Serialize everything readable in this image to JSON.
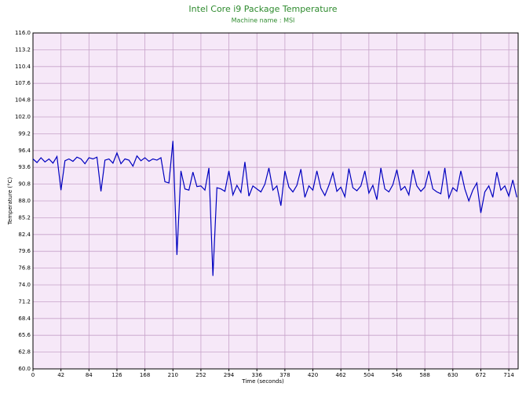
{
  "chart_data": {
    "type": "line",
    "title": "Intel Core i9 Package Temperature",
    "subtitle": "Machine name : MSI",
    "x_label": "Time (seconds)",
    "y_label": "Temperature (°C)",
    "color": "#0000c0",
    "background": "#f6e8f8",
    "grid": true,
    "xlim": [
      0,
      728
    ],
    "ylim": [
      60,
      116
    ],
    "xticks": [
      0,
      42,
      84,
      126,
      168,
      210,
      252,
      294,
      336,
      378,
      420,
      462,
      504,
      546,
      588,
      630,
      672,
      714
    ],
    "yticks": [
      {
        "value": 60,
        "label": "60.0"
      },
      {
        "value": 62.8,
        "label": "62.8"
      },
      {
        "value": 65.6,
        "label": "65.6"
      },
      {
        "value": 68.4,
        "label": "68.4"
      },
      {
        "value": 71.2,
        "label": "71.2"
      },
      {
        "value": 74,
        "label": "74.0"
      },
      {
        "value": 76.8,
        "label": "76.8"
      },
      {
        "value": 79.6,
        "label": "79.6"
      },
      {
        "value": 82.4,
        "label": "82.4"
      },
      {
        "value": 85.2,
        "label": "85.2"
      },
      {
        "value": 88,
        "label": "88.0"
      },
      {
        "value": 90.8,
        "label": "90.8"
      },
      {
        "value": 93.6,
        "label": "93.6"
      },
      {
        "value": 96.4,
        "label": "96.4"
      },
      {
        "value": 99.2,
        "label": "99.2"
      },
      {
        "value": 102,
        "label": "102.0"
      },
      {
        "value": 104.8,
        "label": "104.8"
      },
      {
        "value": 107.6,
        "label": "107.6"
      },
      {
        "value": 110.4,
        "label": "110.4"
      },
      {
        "value": 113.2,
        "label": "113.2"
      },
      {
        "value": 116,
        "label": "116.0"
      }
    ],
    "x": [
      0,
      6,
      12,
      18,
      24,
      30,
      36,
      42,
      48,
      54,
      60,
      66,
      72,
      78,
      84,
      90,
      96,
      102,
      108,
      114,
      120,
      126,
      132,
      138,
      144,
      150,
      156,
      162,
      168,
      174,
      180,
      186,
      192,
      198,
      204,
      210,
      216,
      222,
      228,
      234,
      240,
      246,
      252,
      258,
      264,
      270,
      276,
      282,
      288,
      294,
      300,
      306,
      312,
      318,
      324,
      330,
      336,
      342,
      348,
      354,
      360,
      366,
      372,
      378,
      384,
      390,
      396,
      402,
      408,
      414,
      420,
      426,
      432,
      438,
      444,
      450,
      456,
      462,
      468,
      474,
      480,
      486,
      492,
      498,
      504,
      510,
      516,
      522,
      528,
      534,
      540,
      546,
      552,
      558,
      564,
      570,
      576,
      582,
      588,
      594,
      600,
      606,
      612,
      618,
      624,
      630,
      636,
      642,
      648,
      654,
      660,
      666,
      672,
      678,
      684,
      690,
      696,
      702,
      708,
      714,
      720,
      726
    ],
    "values": [
      95.0,
      94.4,
      95.2,
      94.5,
      95.0,
      94.3,
      95.4,
      89.8,
      94.7,
      95.0,
      94.6,
      95.3,
      95.0,
      94.2,
      95.2,
      95.0,
      95.3,
      89.6,
      94.8,
      95.0,
      94.3,
      96.0,
      94.2,
      95.0,
      94.8,
      93.8,
      95.5,
      94.7,
      95.2,
      94.6,
      95.0,
      94.8,
      95.2,
      91.2,
      91.0,
      98.0,
      79.0,
      93.0,
      90.0,
      89.8,
      92.8,
      90.4,
      90.5,
      89.8,
      93.5,
      75.5,
      90.2,
      90.0,
      89.6,
      93.0,
      89.0,
      90.6,
      89.4,
      94.5,
      88.8,
      90.5,
      90.0,
      89.5,
      90.8,
      93.5,
      89.8,
      90.5,
      87.2,
      93.0,
      90.3,
      89.5,
      90.6,
      93.3,
      88.6,
      90.5,
      89.8,
      93.0,
      90.1,
      88.9,
      90.6,
      92.7,
      89.6,
      90.3,
      88.7,
      93.4,
      90.2,
      89.7,
      90.5,
      93.0,
      89.3,
      90.6,
      88.2,
      93.5,
      90.0,
      89.5,
      90.7,
      93.2,
      89.8,
      90.4,
      89.0,
      93.2,
      90.5,
      89.6,
      90.3,
      93.0,
      90.0,
      89.5,
      89.2,
      93.5,
      88.5,
      90.2,
      89.6,
      93.0,
      90.0,
      88.0,
      89.8,
      91.0,
      86.0,
      89.5,
      90.5,
      88.6,
      92.8,
      89.8,
      90.5,
      88.8,
      91.5,
      88.6
    ]
  }
}
